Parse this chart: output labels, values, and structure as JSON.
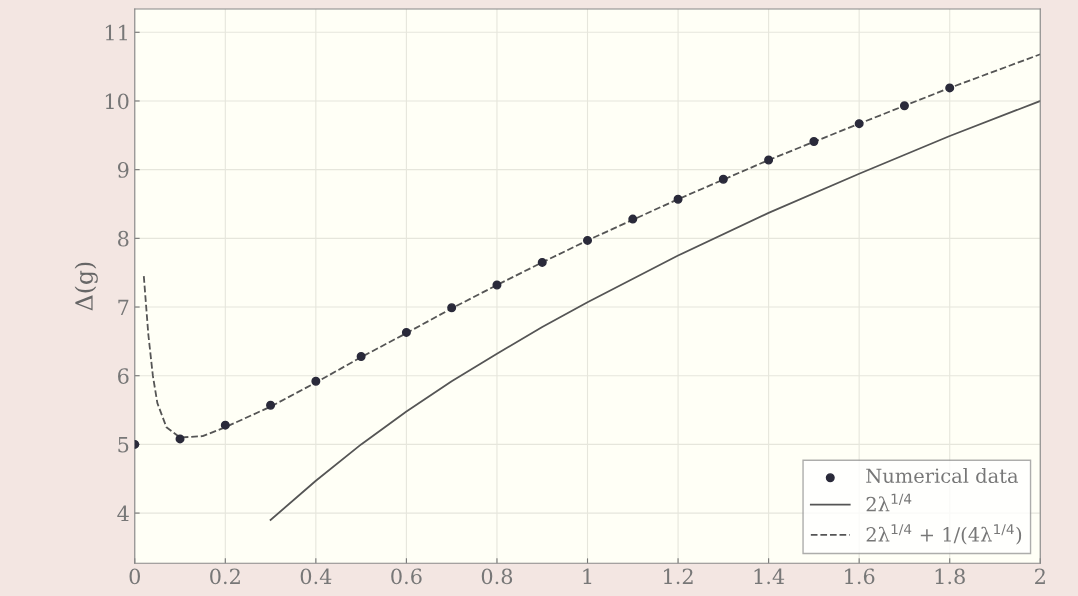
{
  "chart_data": {
    "type": "line",
    "ylabel": "Δ(g)",
    "xlim": [
      0,
      2
    ],
    "ylim": [
      3.27,
      11.34
    ],
    "xticks": [
      0,
      0.2,
      0.4,
      0.6,
      0.8,
      1,
      1.2,
      1.4,
      1.6,
      1.8,
      2
    ],
    "yticks": [
      4,
      5,
      6,
      7,
      8,
      9,
      10,
      11
    ],
    "grid": true,
    "legend": "bottom right",
    "series": [
      {
        "name": "Numerical data",
        "type": "scatter",
        "marker": "circle",
        "color": "#2a2a3a",
        "x": [
          0,
          0.1,
          0.2,
          0.3,
          0.4,
          0.5,
          0.6,
          0.7,
          0.8,
          0.9,
          1.0,
          1.1,
          1.2,
          1.3,
          1.4,
          1.5,
          1.6,
          1.7,
          1.8
        ],
        "values": [
          5.0,
          5.08,
          5.28,
          5.57,
          5.92,
          6.28,
          6.63,
          6.99,
          7.32,
          7.65,
          7.97,
          8.28,
          8.57,
          8.86,
          9.14,
          9.41,
          9.67,
          9.93,
          10.19
        ]
      },
      {
        "name": "2λ$^{1/4}$",
        "line_style": "solid",
        "color": "#555555",
        "x": [
          0.3,
          0.4,
          0.5,
          0.6,
          0.7,
          0.8,
          0.9,
          1.0,
          1.2,
          1.4,
          1.6,
          1.8,
          2.0
        ],
        "values": [
          3.9,
          4.47,
          5.0,
          5.48,
          5.92,
          6.32,
          6.71,
          7.07,
          7.75,
          8.37,
          8.94,
          9.49,
          10.0
        ]
      },
      {
        "name": "2λ$^{1/4}$ + 1/(4λ$^{1/4}$)",
        "line_style": "dashed",
        "color": "#555555",
        "x": [
          0.02,
          0.03,
          0.04,
          0.05,
          0.07,
          0.1,
          0.15,
          0.2,
          0.3,
          0.4,
          0.5,
          0.6,
          0.7,
          0.8,
          0.9,
          1.0,
          1.2,
          1.4,
          1.6,
          1.8,
          2.0
        ],
        "values": [
          7.45,
          6.6,
          6.0,
          5.6,
          5.25,
          5.1,
          5.12,
          5.25,
          5.55,
          5.9,
          6.27,
          6.62,
          6.98,
          7.32,
          7.65,
          7.97,
          8.57,
          9.14,
          9.67,
          10.19,
          10.68
        ]
      }
    ]
  }
}
